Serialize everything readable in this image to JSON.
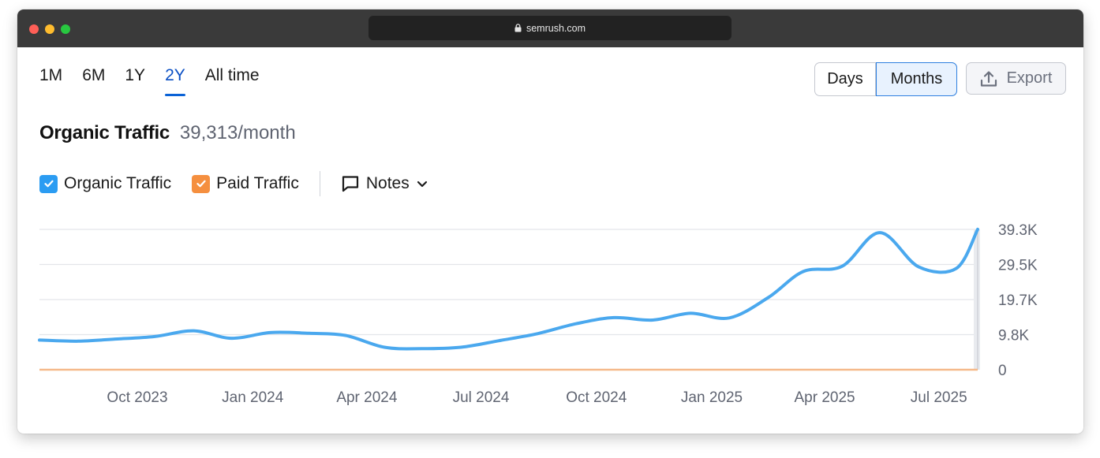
{
  "browser": {
    "url": "semrush.com"
  },
  "period_tabs": [
    {
      "label": "1M",
      "active": false
    },
    {
      "label": "6M",
      "active": false
    },
    {
      "label": "1Y",
      "active": false
    },
    {
      "label": "2Y",
      "active": true
    },
    {
      "label": "All time",
      "active": false
    }
  ],
  "granularity": {
    "days_label": "Days",
    "months_label": "Months",
    "selected": "Months"
  },
  "export_label": "Export",
  "header": {
    "title": "Organic Traffic",
    "value": "39,313/month"
  },
  "legend": {
    "organic_label": "Organic Traffic",
    "paid_label": "Paid Traffic",
    "notes_label": "Notes"
  },
  "colors": {
    "organic": "#4aa8ee",
    "paid": "#f5b98a",
    "accent": "#0a62d6"
  },
  "chart_data": {
    "type": "line",
    "x_tick_labels": [
      "Oct 2023",
      "Jan 2024",
      "Apr 2024",
      "Jul 2024",
      "Oct 2024",
      "Jan 2025",
      "Apr 2025",
      "Jul 2025"
    ],
    "y_tick_labels": [
      "0",
      "9.8K",
      "19.7K",
      "29.5K",
      "39.3K"
    ],
    "ylim": [
      0,
      39300
    ],
    "grid": true,
    "series": [
      {
        "name": "Organic Traffic",
        "points": [
          {
            "x": "2023-07-15",
            "y": 8300
          },
          {
            "x": "2023-08-15",
            "y": 8000
          },
          {
            "x": "2023-09-15",
            "y": 8600
          },
          {
            "x": "2023-10-15",
            "y": 9300
          },
          {
            "x": "2023-11-15",
            "y": 10900
          },
          {
            "x": "2023-12-15",
            "y": 8800
          },
          {
            "x": "2024-01-15",
            "y": 10400
          },
          {
            "x": "2024-02-15",
            "y": 10200
          },
          {
            "x": "2024-03-15",
            "y": 9600
          },
          {
            "x": "2024-04-15",
            "y": 6300
          },
          {
            "x": "2024-05-15",
            "y": 5900
          },
          {
            "x": "2024-06-15",
            "y": 6300
          },
          {
            "x": "2024-07-15",
            "y": 8100
          },
          {
            "x": "2024-08-15",
            "y": 10100
          },
          {
            "x": "2024-09-15",
            "y": 12900
          },
          {
            "x": "2024-10-15",
            "y": 14600
          },
          {
            "x": "2024-11-15",
            "y": 13900
          },
          {
            "x": "2024-12-15",
            "y": 15800
          },
          {
            "x": "2025-01-15",
            "y": 14500
          },
          {
            "x": "2025-02-15",
            "y": 20200
          },
          {
            "x": "2025-03-15",
            "y": 27500
          },
          {
            "x": "2025-04-15",
            "y": 29000
          },
          {
            "x": "2025-05-15",
            "y": 38400
          },
          {
            "x": "2025-06-15",
            "y": 28800
          },
          {
            "x": "2025-07-15",
            "y": 28400
          },
          {
            "x": "2025-08-01",
            "y": 39313
          }
        ]
      },
      {
        "name": "Paid Traffic",
        "points": [
          {
            "x": "2023-07-15",
            "y": 0
          },
          {
            "x": "2025-08-01",
            "y": 0
          }
        ]
      }
    ]
  }
}
